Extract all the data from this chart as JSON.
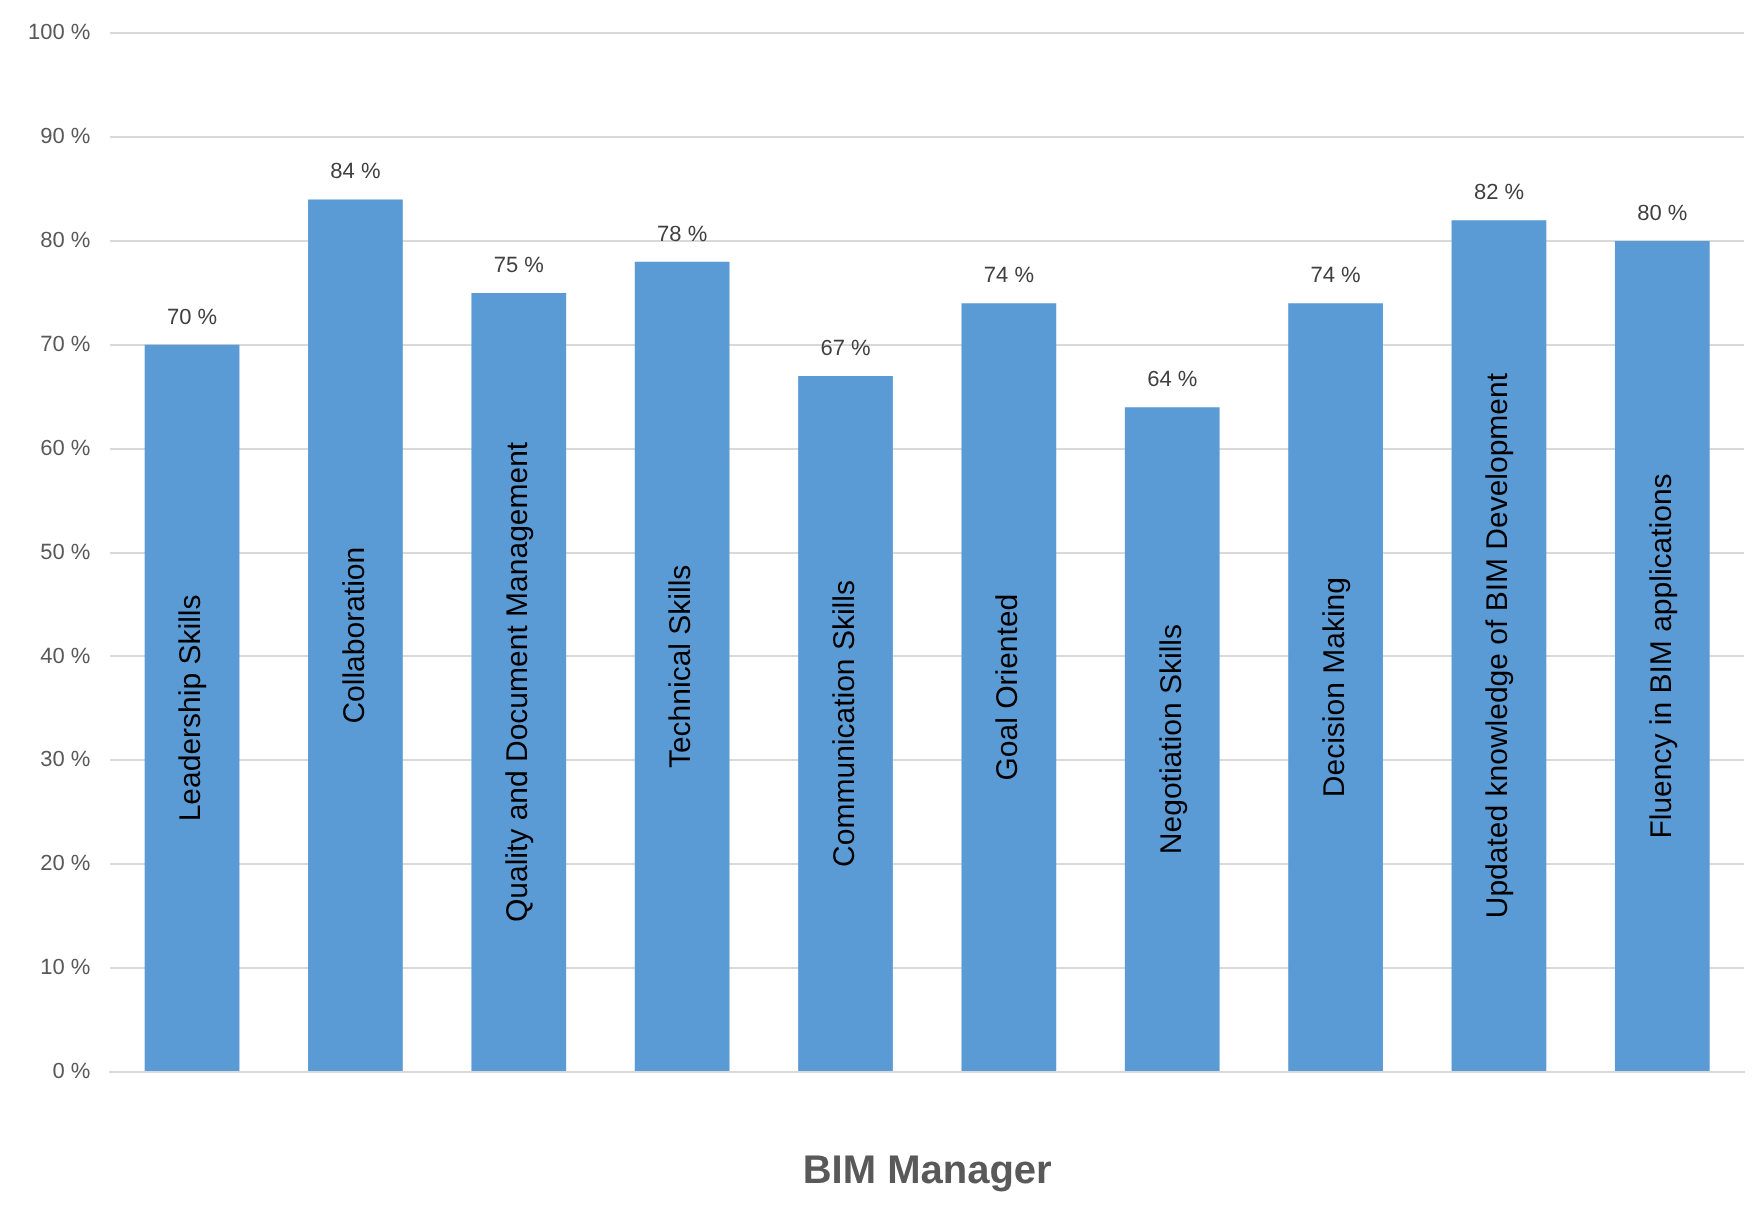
{
  "chart_data": {
    "type": "bar",
    "xlabel": "BIM Manager",
    "categories": [
      "Leadership Skills",
      "Collaboration",
      "Quality and Document Management",
      "Technical Skills",
      "Communication Skills",
      "Goal Oriented",
      "Negotiation Skills",
      "Decision Making",
      "Updated knowledge of BIM Development",
      "Fluency in BIM applications"
    ],
    "values": [
      70,
      84,
      75,
      78,
      67,
      74,
      64,
      74,
      82,
      80
    ],
    "value_labels": [
      "70 %",
      "84 %",
      "75 %",
      "78 %",
      "67 %",
      "74 %",
      "64 %",
      "74 %",
      "82 %",
      "80 %"
    ],
    "color": "#5b9bd5",
    "ylim": [
      0,
      100
    ],
    "yticks": [
      {
        "value": 0,
        "label": "0 %"
      },
      {
        "value": 10,
        "label": "10 %"
      },
      {
        "value": 20,
        "label": "20 %"
      },
      {
        "value": 30,
        "label": "30 %"
      },
      {
        "value": 40,
        "label": "40 %"
      },
      {
        "value": 50,
        "label": "50 %"
      },
      {
        "value": 60,
        "label": "60 %"
      },
      {
        "value": 70,
        "label": "70 %"
      },
      {
        "value": 80,
        "label": "80 %"
      },
      {
        "value": 90,
        "label": "90 %"
      },
      {
        "value": 100,
        "label": "100 %"
      }
    ],
    "grid": "y",
    "legend": false
  }
}
